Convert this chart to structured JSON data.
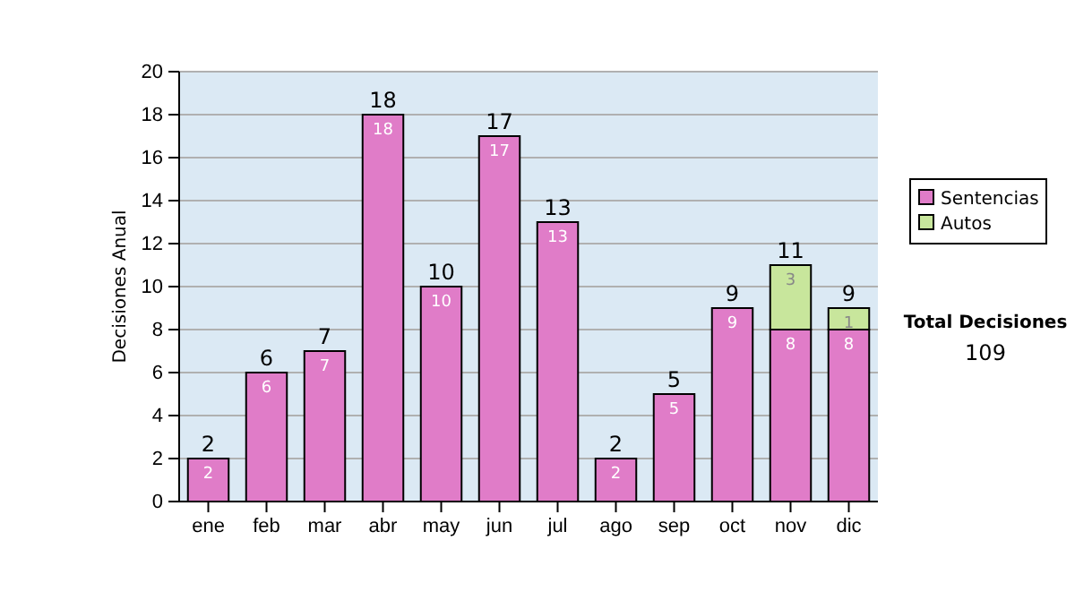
{
  "chart_data": {
    "type": "bar",
    "stacked": true,
    "ylabel": "Decisiones Anual",
    "categories": [
      "ene",
      "feb",
      "mar",
      "abr",
      "may",
      "jun",
      "jul",
      "ago",
      "sep",
      "oct",
      "nov",
      "dic"
    ],
    "series": [
      {
        "name": "Sentencias",
        "color": "#e07cc8",
        "values": [
          2,
          6,
          7,
          18,
          10,
          17,
          13,
          2,
          5,
          9,
          8,
          8
        ]
      },
      {
        "name": "Autos",
        "color": "#c8e69c",
        "values": [
          null,
          null,
          null,
          null,
          null,
          null,
          null,
          null,
          null,
          null,
          3,
          1
        ]
      }
    ],
    "totals": [
      "2",
      "6",
      "7",
      "18",
      "10",
      "17",
      "13",
      "2",
      "5",
      "9",
      "11",
      "9"
    ],
    "data_labels": true,
    "ylim": [
      0,
      20
    ],
    "yticks": [
      0,
      2,
      4,
      6,
      8,
      10,
      12,
      14,
      16,
      18,
      20
    ],
    "grid": "y",
    "legend": "right",
    "annotations": [
      "Total Decisiones",
      "109"
    ]
  }
}
